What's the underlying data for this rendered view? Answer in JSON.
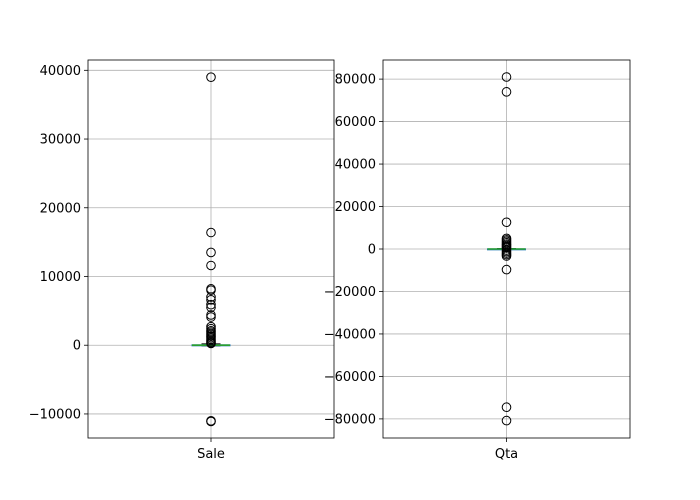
{
  "chart_data": [
    {
      "type": "box",
      "category": "Sale",
      "grid": true,
      "ylim": [
        -13500,
        41500
      ],
      "yticks": [
        -10000,
        0,
        10000,
        20000,
        30000,
        40000
      ],
      "ytick_labels": [
        "−10000",
        "0",
        "10000",
        "20000",
        "30000",
        "40000"
      ],
      "box": {
        "whisker_low": -100,
        "q1": -20,
        "median": 0,
        "q3": 60,
        "whisker_high": 200
      },
      "outliers": [
        39000,
        16400,
        13500,
        11600,
        8200,
        8000,
        7000,
        6600,
        5900,
        5500,
        4400,
        4100,
        2700,
        2400,
        2100,
        1900,
        1700,
        1500,
        1300,
        1100,
        900,
        700,
        500,
        350,
        250,
        -11000,
        -11100
      ],
      "colors": {
        "box": "#1f77b4",
        "median": "#2ca02c"
      }
    },
    {
      "type": "box",
      "category": "Qta",
      "grid": true,
      "ylim": [
        -89000,
        89000
      ],
      "yticks": [
        -80000,
        -60000,
        -40000,
        -20000,
        0,
        20000,
        40000,
        60000,
        80000
      ],
      "ytick_labels": [
        "−80000",
        "−60000",
        "−40000",
        "−20000",
        "0",
        "20000",
        "40000",
        "60000",
        "80000"
      ],
      "box": {
        "whisker_low": -150,
        "q1": -30,
        "median": 0,
        "q3": 80,
        "whisker_high": 250
      },
      "outliers": [
        81000,
        74000,
        12600,
        5000,
        4300,
        3600,
        2900,
        2200,
        1600,
        1000,
        500,
        -500,
        -1200,
        -1900,
        -2600,
        -3300,
        -9700,
        -74500,
        -80800
      ],
      "colors": {
        "box": "#1f77b4",
        "median": "#2ca02c"
      }
    }
  ]
}
